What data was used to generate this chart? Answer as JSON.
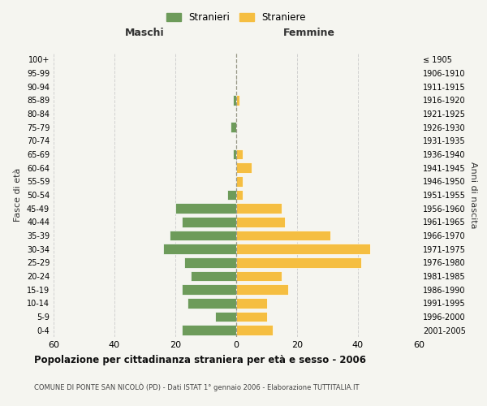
{
  "age_groups": [
    "100+",
    "95-99",
    "90-94",
    "85-89",
    "80-84",
    "75-79",
    "70-74",
    "65-69",
    "60-64",
    "55-59",
    "50-54",
    "45-49",
    "40-44",
    "35-39",
    "30-34",
    "25-29",
    "20-24",
    "15-19",
    "10-14",
    "5-9",
    "0-4"
  ],
  "birth_years": [
    "≤ 1905",
    "1906-1910",
    "1911-1915",
    "1916-1920",
    "1921-1925",
    "1926-1930",
    "1931-1935",
    "1936-1940",
    "1941-1945",
    "1946-1950",
    "1951-1955",
    "1956-1960",
    "1961-1965",
    "1966-1970",
    "1971-1975",
    "1976-1980",
    "1981-1985",
    "1986-1990",
    "1991-1995",
    "1996-2000",
    "2001-2005"
  ],
  "maschi": [
    0,
    0,
    0,
    1,
    0,
    2,
    0,
    1,
    0,
    0,
    3,
    20,
    18,
    22,
    24,
    17,
    15,
    18,
    16,
    7,
    18
  ],
  "femmine": [
    0,
    0,
    0,
    1,
    0,
    0,
    0,
    2,
    5,
    2,
    2,
    15,
    16,
    31,
    44,
    41,
    15,
    17,
    10,
    10,
    12
  ],
  "color_maschi": "#6d9b5a",
  "color_femmine": "#f5be41",
  "title": "Popolazione per cittadinanza straniera per età e sesso - 2006",
  "subtitle": "COMUNE DI PONTE SAN NICOLÒ (PD) - Dati ISTAT 1° gennaio 2006 - Elaborazione TUTTITALIA.IT",
  "xlabel_left": "Maschi",
  "xlabel_right": "Femmine",
  "ylabel_left": "Fasce di età",
  "ylabel_right": "Anni di nascita",
  "legend_maschi": "Stranieri",
  "legend_femmine": "Straniere",
  "xlim": 60,
  "bg_color": "#f5f5f0",
  "grid_color": "#cccccc"
}
